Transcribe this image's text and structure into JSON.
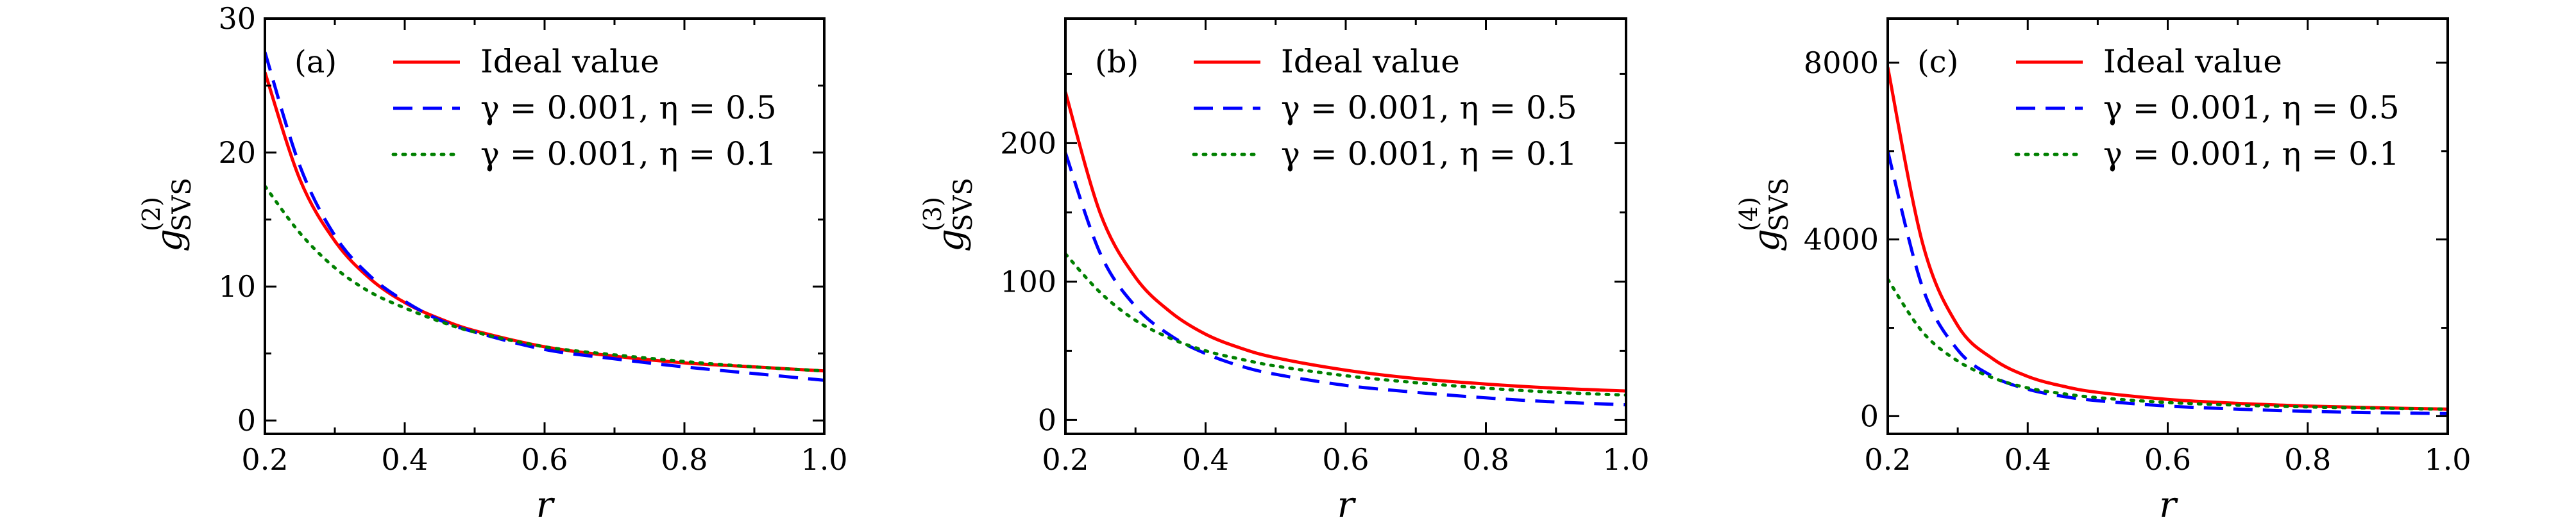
{
  "colors": {
    "ideal": "#ff0000",
    "eta05": "#0000ff",
    "eta01": "#008000",
    "axes": "#000000"
  },
  "chart_data": [
    {
      "type": "line",
      "panel_label": "(a)",
      "xlabel": "r",
      "ylabel": {
        "main": "g",
        "sup": "(2)",
        "sub": "SVS"
      },
      "xlim": [
        0.2,
        1.0
      ],
      "ylim": [
        -1,
        30
      ],
      "xticks": [
        0.2,
        0.4,
        0.6,
        0.8,
        1.0
      ],
      "xtick_labels": [
        "0.2",
        "0.4",
        "0.6",
        "0.8",
        "1.0"
      ],
      "yticks": [
        0,
        10,
        20,
        30
      ],
      "ytick_labels": [
        "0",
        "10",
        "20",
        "30"
      ],
      "legend_position": "top-right",
      "x": [
        0.2,
        0.25,
        0.3,
        0.35,
        0.4,
        0.45,
        0.5,
        0.6,
        0.7,
        0.8,
        0.9,
        1.0
      ],
      "series": [
        {
          "name": "Ideal value",
          "style": "solid",
          "color": "#ff0000",
          "values": [
            26.0,
            18.0,
            13.4,
            10.6,
            8.8,
            7.6,
            6.7,
            5.5,
            4.8,
            4.3,
            4.0,
            3.7
          ]
        },
        {
          "name": "γ = 0.001,  η = 0.5",
          "style": "dashed",
          "color": "#0000ff",
          "values": [
            27.5,
            19.0,
            13.8,
            10.8,
            8.9,
            7.5,
            6.6,
            5.3,
            4.6,
            4.0,
            3.5,
            3.0
          ]
        },
        {
          "name": "γ = 0.001,  η = 0.1",
          "style": "dotted",
          "color": "#008000",
          "values": [
            17.5,
            14.0,
            11.4,
            9.6,
            8.4,
            7.4,
            6.6,
            5.5,
            4.9,
            4.4,
            4.0,
            3.7
          ]
        }
      ]
    },
    {
      "type": "line",
      "panel_label": "(b)",
      "xlabel": "r",
      "ylabel": {
        "main": "g",
        "sup": "(3)",
        "sub": "SVS"
      },
      "xlim": [
        0.2,
        1.0
      ],
      "ylim": [
        -10,
        290
      ],
      "xticks": [
        0.2,
        0.4,
        0.6,
        0.8,
        1.0
      ],
      "xtick_labels": [
        "0.2",
        "0.4",
        "0.6",
        "0.8",
        "1.0"
      ],
      "yticks": [
        0,
        100,
        200
      ],
      "ytick_labels": [
        "0",
        "100",
        "200"
      ],
      "legend_position": "top-right",
      "x": [
        0.2,
        0.25,
        0.3,
        0.35,
        0.4,
        0.45,
        0.5,
        0.6,
        0.7,
        0.8,
        0.9,
        1.0
      ],
      "series": [
        {
          "name": "Ideal value",
          "style": "solid",
          "color": "#ff0000",
          "values": [
            237,
            149,
            103,
            78,
            62,
            52,
            45,
            36,
            30,
            26,
            23,
            21
          ]
        },
        {
          "name": "γ = 0.001,  η = 0.5",
          "style": "dashed",
          "color": "#0000ff",
          "values": [
            193,
            120,
            82,
            61,
            48,
            39,
            33,
            25,
            20,
            16,
            13,
            11
          ]
        },
        {
          "name": "γ = 0.001,  η = 0.1",
          "style": "dotted",
          "color": "#008000",
          "values": [
            120,
            92,
            72,
            59,
            50,
            44,
            39,
            32,
            27,
            23,
            20,
            18
          ]
        }
      ]
    },
    {
      "type": "line",
      "panel_label": "(c)",
      "xlabel": "r",
      "ylabel": {
        "main": "g",
        "sup": "(4)",
        "sub": "SVS"
      },
      "xlim": [
        0.2,
        1.0
      ],
      "ylim": [
        -400,
        9000
      ],
      "xticks": [
        0.2,
        0.4,
        0.6,
        0.8,
        1.0
      ],
      "xtick_labels": [
        "0.2",
        "0.4",
        "0.6",
        "0.8",
        "1.0"
      ],
      "yticks": [
        0,
        4000,
        8000
      ],
      "ytick_labels": [
        "0",
        "4000",
        "8000"
      ],
      "legend_position": "top-right",
      "x": [
        0.2,
        0.25,
        0.3,
        0.35,
        0.4,
        0.45,
        0.5,
        0.6,
        0.7,
        0.8,
        0.9,
        1.0
      ],
      "series": [
        {
          "name": "Ideal value",
          "style": "solid",
          "color": "#ff0000",
          "values": [
            7900,
            3900,
            2050,
            1300,
            900,
            680,
            540,
            380,
            290,
            230,
            190,
            160
          ]
        },
        {
          "name": "γ = 0.001,  η = 0.5",
          "style": "dashed",
          "color": "#0000ff",
          "values": [
            6000,
            2900,
            1500,
            900,
            610,
            450,
            350,
            230,
            160,
            110,
            80,
            60
          ]
        },
        {
          "name": "γ = 0.001,  η = 0.1",
          "style": "dotted",
          "color": "#008000",
          "values": [
            3100,
            1900,
            1250,
            870,
            640,
            510,
            420,
            310,
            250,
            210,
            180,
            160
          ]
        }
      ]
    }
  ]
}
